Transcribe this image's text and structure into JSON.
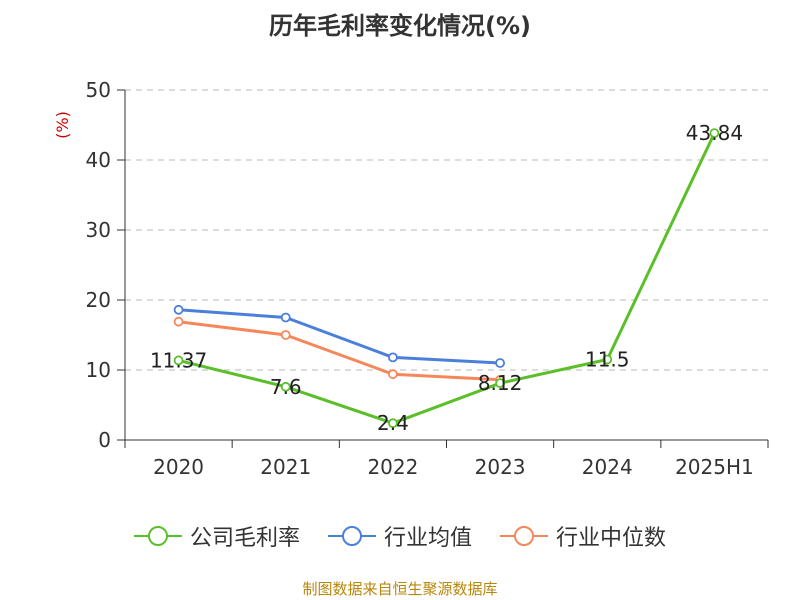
{
  "title": "历年毛利率变化情况(%)",
  "source": "制图数据来自恒生聚源数据库",
  "source_color": "#b8860b",
  "chart_data": {
    "type": "line",
    "title": "历年毛利率变化情况(%)",
    "ylabel": "(%)",
    "ylabel_color": "#cc0000",
    "xlabel": "",
    "categories": [
      "2020",
      "2021",
      "2022",
      "2023",
      "2024",
      "2025H1"
    ],
    "ylim": [
      0,
      50
    ],
    "yticks": [
      0,
      10,
      20,
      30,
      40,
      50
    ],
    "grid": true,
    "legend_position": "bottom",
    "series": [
      {
        "name": "公司毛利率",
        "color": "#5bbf2a",
        "values": [
          11.37,
          7.6,
          2.4,
          8.12,
          11.5,
          43.84
        ],
        "labels": [
          "11.37",
          "7.6",
          "2.4",
          "8.12",
          "11.5",
          "43.84"
        ]
      },
      {
        "name": "行业均值",
        "color": "#4a7fdc",
        "values": [
          18.6,
          17.5,
          11.8,
          11.0,
          null,
          null
        ],
        "labels": []
      },
      {
        "name": "行业中位数",
        "color": "#f5885a",
        "values": [
          16.9,
          15.0,
          9.4,
          8.6,
          null,
          null
        ],
        "labels": []
      }
    ]
  }
}
